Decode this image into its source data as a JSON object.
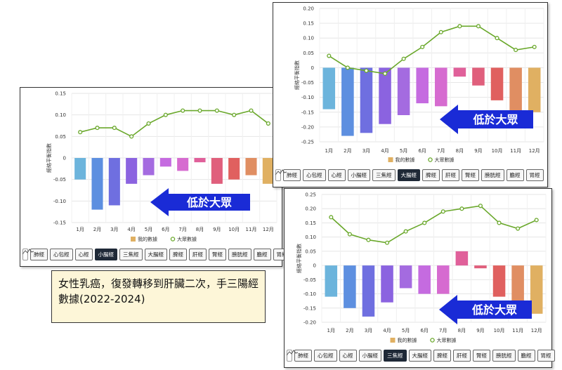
{
  "note": {
    "text": "女性乳癌，復發轉移到肝臟二次，手三陽經數據(2022-2024)"
  },
  "tabs": [
    "肺經",
    "心包經",
    "心經",
    "小腸經",
    "三焦經",
    "大腸經",
    "脾經",
    "肝經",
    "腎經",
    "膀胱經",
    "膽經",
    "胃經"
  ],
  "colors": {
    "bars": [
      "#6cb4dc",
      "#5d8fe0",
      "#6f6fe0",
      "#8b63e0",
      "#a46be0",
      "#c56be0",
      "#d66bd0",
      "#e0609a",
      "#e05f7c",
      "#e0605f",
      "#e08e62",
      "#e0b062"
    ],
    "line": "#6aa82b",
    "arrow": "#1a2bd6",
    "legend_mine": "#e0b062"
  },
  "chart_data": [
    {
      "type": "bar",
      "active_tab": "小腸經",
      "ylabel": "經絡平衡指數",
      "categories": [
        "1月",
        "2月",
        "3月",
        "4月",
        "5月",
        "6月",
        "7月",
        "8月",
        "9月",
        "10月",
        "11月",
        "12月"
      ],
      "yticks": [
        "0.15",
        "0.10",
        "0.05",
        "0",
        "-0.05",
        "-0.10",
        "-0.15"
      ],
      "ylim": [
        -0.15,
        0.15
      ],
      "series": [
        {
          "name": "我的數據",
          "type": "bar",
          "values": [
            -0.05,
            -0.12,
            -0.11,
            -0.06,
            -0.04,
            -0.02,
            -0.03,
            -0.01,
            -0.06,
            -0.05,
            -0.04,
            -0.06
          ]
        },
        {
          "name": "大眾數據",
          "type": "line",
          "values": [
            0.06,
            0.07,
            0.07,
            0.05,
            0.08,
            0.1,
            0.11,
            0.11,
            0.11,
            0.1,
            0.11,
            0.08
          ]
        }
      ],
      "annotation": "低於大眾"
    },
    {
      "type": "bar",
      "active_tab": "大腸經",
      "ylabel": "經絡平衡指數",
      "categories": [
        "1月",
        "2月",
        "3月",
        "4月",
        "5月",
        "6月",
        "7月",
        "8月",
        "9月",
        "10月",
        "11月",
        "12月"
      ],
      "yticks": [
        "0.20",
        "0.15",
        "0.10",
        "0.05",
        "0",
        "-0.05",
        "-0.10",
        "-0.15",
        "-0.20",
        "-0.25"
      ],
      "ylim": [
        -0.25,
        0.2
      ],
      "series": [
        {
          "name": "我的數據",
          "type": "bar",
          "values": [
            -0.14,
            -0.23,
            -0.22,
            -0.19,
            -0.16,
            -0.12,
            -0.13,
            -0.03,
            -0.06,
            -0.11,
            -0.16,
            -0.15
          ]
        },
        {
          "name": "大眾數據",
          "type": "line",
          "values": [
            0.04,
            0.0,
            -0.01,
            -0.02,
            0.03,
            0.07,
            0.12,
            0.14,
            0.14,
            0.1,
            0.06,
            0.07
          ]
        }
      ],
      "annotation": "低於大眾"
    },
    {
      "type": "bar",
      "active_tab": "三焦經",
      "ylabel": "經絡平衡指數",
      "categories": [
        "1月",
        "2月",
        "3月",
        "4月",
        "5月",
        "6月",
        "7月",
        "8月",
        "9月",
        "10月",
        "11月",
        "12月"
      ],
      "yticks": [
        "0.25",
        "0.20",
        "0.15",
        "0.10",
        "0.05",
        "0",
        "-0.05",
        "-0.10",
        "-0.15",
        "-0.20"
      ],
      "ylim": [
        -0.2,
        0.25
      ],
      "series": [
        {
          "name": "我的數據",
          "type": "bar",
          "values": [
            -0.11,
            -0.15,
            -0.18,
            -0.13,
            -0.08,
            -0.1,
            -0.1,
            0.05,
            -0.01,
            -0.11,
            -0.14,
            -0.17
          ]
        },
        {
          "name": "大眾數據",
          "type": "line",
          "values": [
            0.17,
            0.11,
            0.09,
            0.08,
            0.12,
            0.15,
            0.19,
            0.2,
            0.21,
            0.15,
            0.13,
            0.16
          ]
        }
      ],
      "annotation": "低於大眾"
    }
  ]
}
